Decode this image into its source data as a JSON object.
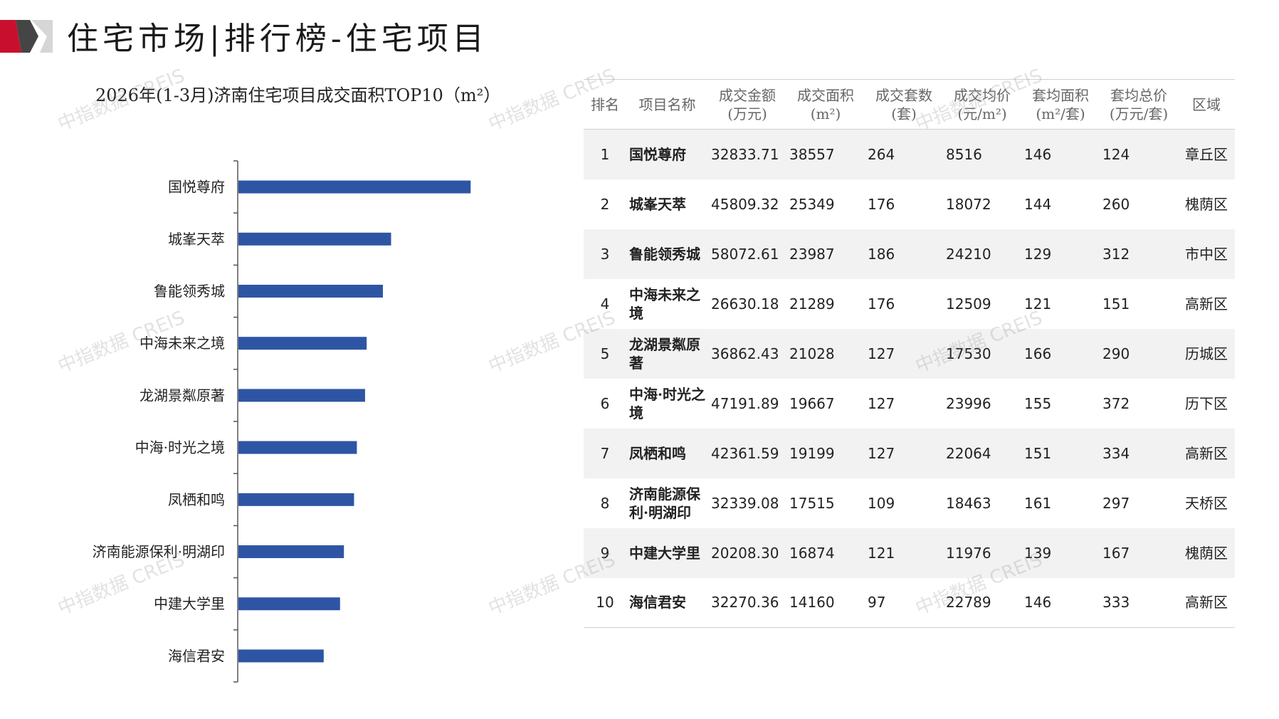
{
  "header": {
    "title": "住宅市场|排行榜-住宅项目",
    "logo_colors": [
      "#c8102e",
      "#444444",
      "#d9d9d9"
    ]
  },
  "watermark": "中指数据 CREIS",
  "chart_data": {
    "type": "bar",
    "orientation": "horizontal",
    "title": "2026年(1-3月)济南住宅项目成交面积TOP10（m²）",
    "categories": [
      "国悦尊府",
      "城峯天萃",
      "鲁能领秀城",
      "中海未来之境",
      "龙湖景粼原著",
      "中海·时光之境",
      "凤栖和鸣",
      "济南能源保利·明湖印",
      "中建大学里",
      "海信君安"
    ],
    "values": [
      38557,
      25349,
      23987,
      21289,
      21028,
      19667,
      19199,
      17515,
      16874,
      14160
    ],
    "xlim": [
      0,
      52000
    ],
    "bar_color": "#2e55a4",
    "grid": false,
    "legend": "none"
  },
  "table": {
    "headers": [
      [
        "排名"
      ],
      [
        "项目名称"
      ],
      [
        "成交金额",
        "(万元)"
      ],
      [
        "成交面积",
        "(m²)"
      ],
      [
        "成交套数",
        "(套)"
      ],
      [
        "成交均价",
        "(元/m²)"
      ],
      [
        "套均面积",
        "(m²/套)"
      ],
      [
        "套均总价",
        "(万元/套)"
      ],
      [
        "区域"
      ]
    ],
    "rows": [
      [
        "1",
        "国悦尊府",
        "32833.71",
        "38557",
        "264",
        "8516",
        "146",
        "124",
        "章丘区"
      ],
      [
        "2",
        "城峯天萃",
        "45809.32",
        "25349",
        "176",
        "18072",
        "144",
        "260",
        "槐荫区"
      ],
      [
        "3",
        "鲁能领秀城",
        "58072.61",
        "23987",
        "186",
        "24210",
        "129",
        "312",
        "市中区"
      ],
      [
        "4",
        "中海未来之境",
        "26630.18",
        "21289",
        "176",
        "12509",
        "121",
        "151",
        "高新区"
      ],
      [
        "5",
        "龙湖景粼原著",
        "36862.43",
        "21028",
        "127",
        "17530",
        "166",
        "290",
        "历城区"
      ],
      [
        "6",
        "中海·时光之境",
        "47191.89",
        "19667",
        "127",
        "23996",
        "155",
        "372",
        "历下区"
      ],
      [
        "7",
        "凤栖和鸣",
        "42361.59",
        "19199",
        "127",
        "22064",
        "151",
        "334",
        "高新区"
      ],
      [
        "8",
        "济南能源保利·明湖印",
        "32339.08",
        "17515",
        "109",
        "18463",
        "161",
        "297",
        "天桥区"
      ],
      [
        "9",
        "中建大学里",
        "20208.30",
        "16874",
        "121",
        "11976",
        "139",
        "167",
        "槐荫区"
      ],
      [
        "10",
        "海信君安",
        "32270.36",
        "14160",
        "97",
        "22789",
        "146",
        "333",
        "高新区"
      ]
    ]
  }
}
